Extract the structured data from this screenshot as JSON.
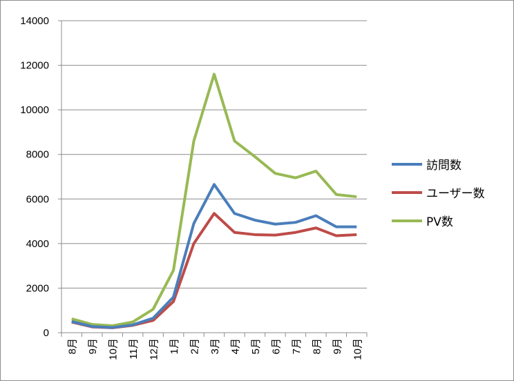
{
  "chart_data": {
    "type": "line",
    "title": "",
    "xlabel": "",
    "ylabel": "",
    "ylim": [
      0,
      14000
    ],
    "yticks": [
      "0",
      "2000",
      "4000",
      "6000",
      "8000",
      "10000",
      "12000",
      "14000"
    ],
    "ytick_values": [
      0,
      2000,
      4000,
      6000,
      8000,
      10000,
      12000,
      14000
    ],
    "grid": true,
    "legend_position": "right",
    "categories": [
      "8月",
      "9月",
      "10月",
      "11月",
      "12月",
      "1月",
      "2月",
      "3月",
      "4月",
      "5月",
      "6月",
      "7月",
      "8月",
      "9月",
      "10月"
    ],
    "series": [
      {
        "name": "訪問数",
        "color": "#4a7ebb",
        "values": [
          500,
          280,
          230,
          350,
          650,
          1600,
          4900,
          6650,
          5350,
          5050,
          4870,
          4950,
          5250,
          4750,
          4750
        ]
      },
      {
        "name": "ユーザー数",
        "color": "#be4b48",
        "values": [
          480,
          260,
          220,
          330,
          550,
          1400,
          4000,
          5350,
          4500,
          4400,
          4380,
          4500,
          4700,
          4350,
          4400
        ]
      },
      {
        "name": "PV数",
        "color": "#98b954",
        "values": [
          620,
          370,
          310,
          480,
          1050,
          2800,
          8600,
          11600,
          8600,
          7900,
          7150,
          6950,
          7250,
          6200,
          6100
        ]
      }
    ]
  }
}
